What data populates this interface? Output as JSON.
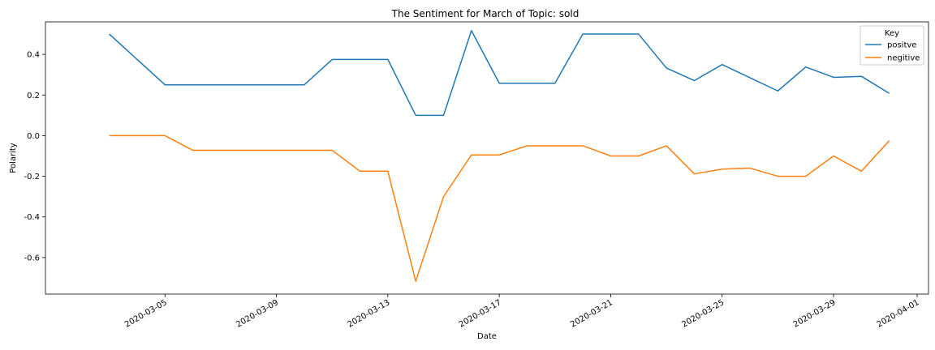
{
  "chart_data": {
    "type": "line",
    "title": "The Sentiment for March of Topic: sold",
    "xlabel": "Date",
    "ylabel": "Polarity",
    "legend": {
      "title": "Key",
      "placement": "top-right"
    },
    "x": [
      "2020-03-03",
      "2020-03-04",
      "2020-03-05",
      "2020-03-06",
      "2020-03-07",
      "2020-03-08",
      "2020-03-09",
      "2020-03-10",
      "2020-03-11",
      "2020-03-12",
      "2020-03-13",
      "2020-03-14",
      "2020-03-15",
      "2020-03-16",
      "2020-03-17",
      "2020-03-18",
      "2020-03-19",
      "2020-03-20",
      "2020-03-21",
      "2020-03-22",
      "2020-03-23",
      "2020-03-24",
      "2020-03-25",
      "2020-03-26",
      "2020-03-27",
      "2020-03-28",
      "2020-03-29",
      "2020-03-30",
      "2020-03-31"
    ],
    "series": [
      {
        "name": "positve",
        "color": "#1f77b4",
        "values": [
          0.5,
          0.375,
          0.25,
          0.25,
          0.25,
          0.25,
          0.25,
          0.25,
          0.375,
          0.375,
          0.375,
          0.1,
          0.1,
          0.517,
          0.258,
          0.258,
          0.258,
          0.5,
          0.5,
          0.5,
          0.333,
          0.271,
          0.35,
          0.285,
          0.22,
          0.338,
          0.287,
          0.292,
          0.208
        ]
      },
      {
        "name": "negitive",
        "color": "#ff7f0e",
        "values": [
          0.0,
          0.0,
          0.0,
          -0.072,
          -0.072,
          -0.072,
          -0.072,
          -0.072,
          -0.072,
          -0.175,
          -0.175,
          -0.717,
          -0.3,
          -0.095,
          -0.095,
          -0.05,
          -0.05,
          -0.05,
          -0.1,
          -0.1,
          -0.05,
          -0.188,
          -0.165,
          -0.16,
          -0.2,
          -0.2,
          -0.1,
          -0.175,
          -0.025
        ]
      }
    ],
    "xticks": [
      "2020-03-05",
      "2020-03-09",
      "2020-03-13",
      "2020-03-17",
      "2020-03-21",
      "2020-03-25",
      "2020-03-29",
      "2020-04-01"
    ],
    "yticks": [
      -0.6,
      -0.4,
      -0.2,
      0.0,
      0.2,
      0.4
    ],
    "ylim": [
      -0.78,
      0.56
    ],
    "xlim": [
      "2020-03-01",
      "2020-04-01"
    ],
    "grid": false
  }
}
